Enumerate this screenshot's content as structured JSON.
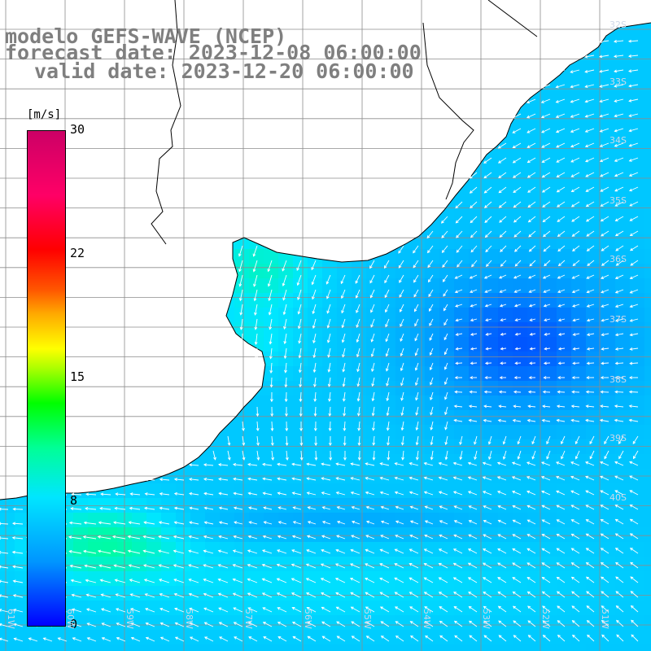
{
  "title": {
    "line1": "modelo GEFS-WAVE (NCEP)",
    "line2": "forecast date: 2023-12-08 06:00:00",
    "line3": "valid date: 2023-12-20 06:00:00"
  },
  "colorbar": {
    "units": "[m/s]",
    "ticks": [
      {
        "label": "30",
        "value": 30
      },
      {
        "label": "22",
        "value": 22
      },
      {
        "label": "15",
        "value": 15
      },
      {
        "label": "8",
        "value": 8
      },
      {
        "label": "0",
        "value": 0
      }
    ],
    "min": 0,
    "max": 30
  },
  "graticule": {
    "lat_labels": [
      "32S",
      "33S",
      "34S",
      "35S",
      "36S",
      "37S",
      "38S",
      "39S",
      "40S"
    ],
    "lon_labels": [
      "61W",
      "60W",
      "59W",
      "58W",
      "57W",
      "56W",
      "55W",
      "54W",
      "53W",
      "52W",
      "51W"
    ]
  },
  "colors": {
    "land": "#ffffff",
    "grid": "#8c8c8c",
    "coast": "#000000",
    "vectors": "#ffffff",
    "title": "#7f7f7f"
  }
}
